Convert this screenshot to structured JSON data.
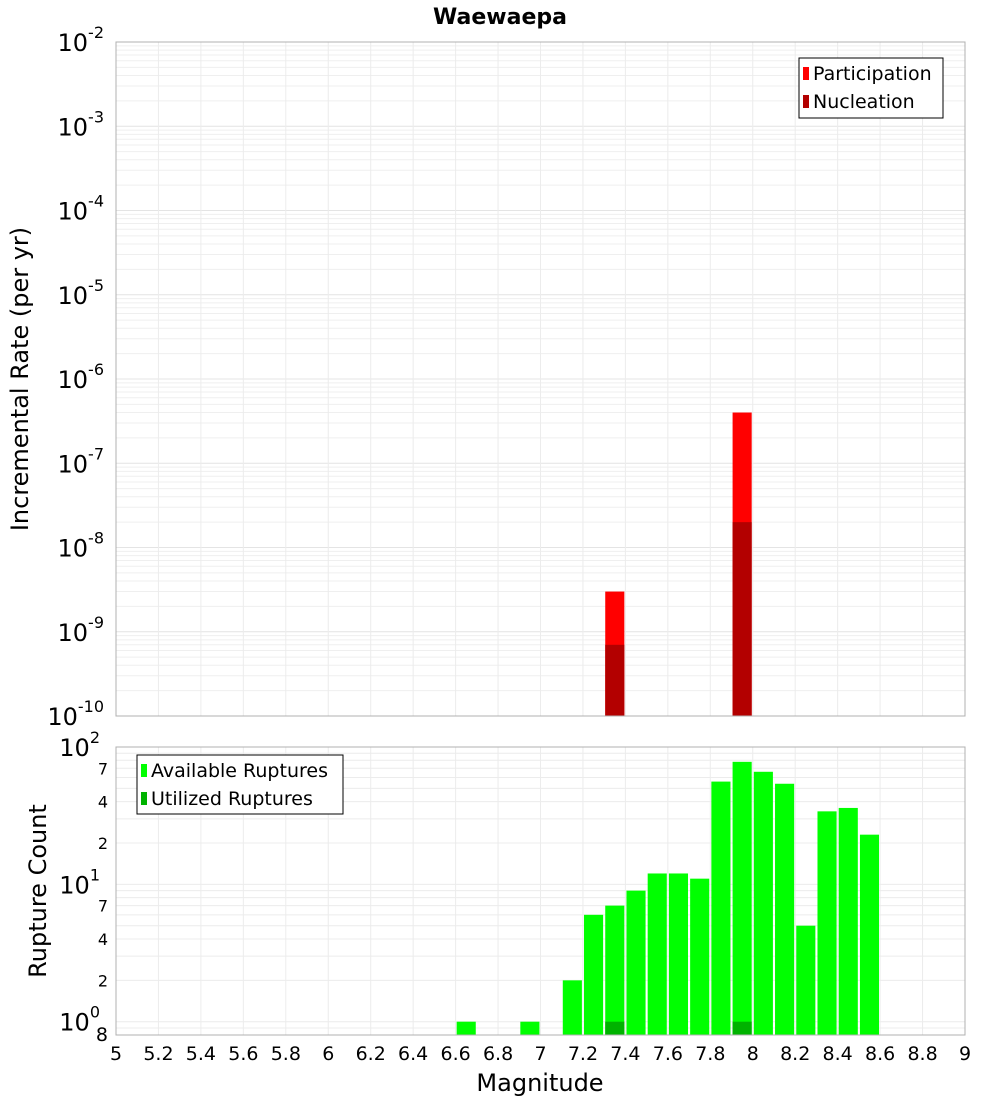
{
  "title": "Waewaepa",
  "chart_data": [
    {
      "type": "bar",
      "ylabel": "Incremental Rate (per yr)",
      "yscale": "log",
      "ylim": [
        1e-10,
        0.01
      ],
      "xlim": [
        5,
        9
      ],
      "grid": true,
      "legend_position": "top-right",
      "y_ticks": [
        {
          "base": "10",
          "exp": "-10"
        },
        {
          "base": "10",
          "exp": "-9"
        },
        {
          "base": "10",
          "exp": "-8"
        },
        {
          "base": "10",
          "exp": "-7"
        },
        {
          "base": "10",
          "exp": "-6"
        },
        {
          "base": "10",
          "exp": "-5"
        },
        {
          "base": "10",
          "exp": "-4"
        },
        {
          "base": "10",
          "exp": "-3"
        },
        {
          "base": "10",
          "exp": "-2"
        }
      ],
      "series": [
        {
          "name": "Participation",
          "color": "#ff0000",
          "x": [
            7.35,
            7.95
          ],
          "values": [
            3e-09,
            4e-07
          ]
        },
        {
          "name": "Nucleation",
          "color": "#b30000",
          "x": [
            7.35,
            7.95
          ],
          "values": [
            7e-10,
            2e-08
          ]
        }
      ]
    },
    {
      "type": "bar",
      "ylabel": "Rupture Count",
      "xlabel": "Magnitude",
      "yscale": "log",
      "ylim": [
        0.8,
        100
      ],
      "xlim": [
        5,
        9
      ],
      "grid": true,
      "legend_position": "top-left",
      "x_ticks": [
        "5",
        "5.2",
        "5.4",
        "5.6",
        "5.8",
        "6",
        "6.2",
        "6.4",
        "6.6",
        "6.8",
        "7",
        "7.2",
        "7.4",
        "7.6",
        "7.8",
        "8",
        "8.2",
        "8.4",
        "8.6",
        "8.8",
        "9"
      ],
      "y_major_ticks": [
        {
          "base": "10",
          "exp": "0"
        },
        {
          "base": "10",
          "exp": "1"
        },
        {
          "base": "10",
          "exp": "2"
        }
      ],
      "y_bottom_label": "8",
      "y_minor_ticks": [
        {
          "label": "2",
          "value": 2
        },
        {
          "label": "4",
          "value": 4
        },
        {
          "label": "7",
          "value": 7
        },
        {
          "label": "2",
          "value": 20
        },
        {
          "label": "4",
          "value": 40
        },
        {
          "label": "7",
          "value": 70
        }
      ],
      "series": [
        {
          "name": "Available Ruptures",
          "color": "#00ff00",
          "x": [
            6.65,
            6.95,
            7.15,
            7.25,
            7.35,
            7.45,
            7.55,
            7.65,
            7.75,
            7.85,
            7.95,
            8.05,
            8.15,
            8.25,
            8.35,
            8.45,
            8.55
          ],
          "values": [
            1,
            1,
            2,
            6,
            7,
            9,
            12,
            12,
            11,
            56,
            78,
            66,
            54,
            5,
            34,
            36,
            23
          ]
        },
        {
          "name": "Utilized Ruptures",
          "color": "#00b300",
          "x": [
            7.35,
            7.95
          ],
          "values": [
            1,
            1
          ]
        }
      ]
    }
  ]
}
